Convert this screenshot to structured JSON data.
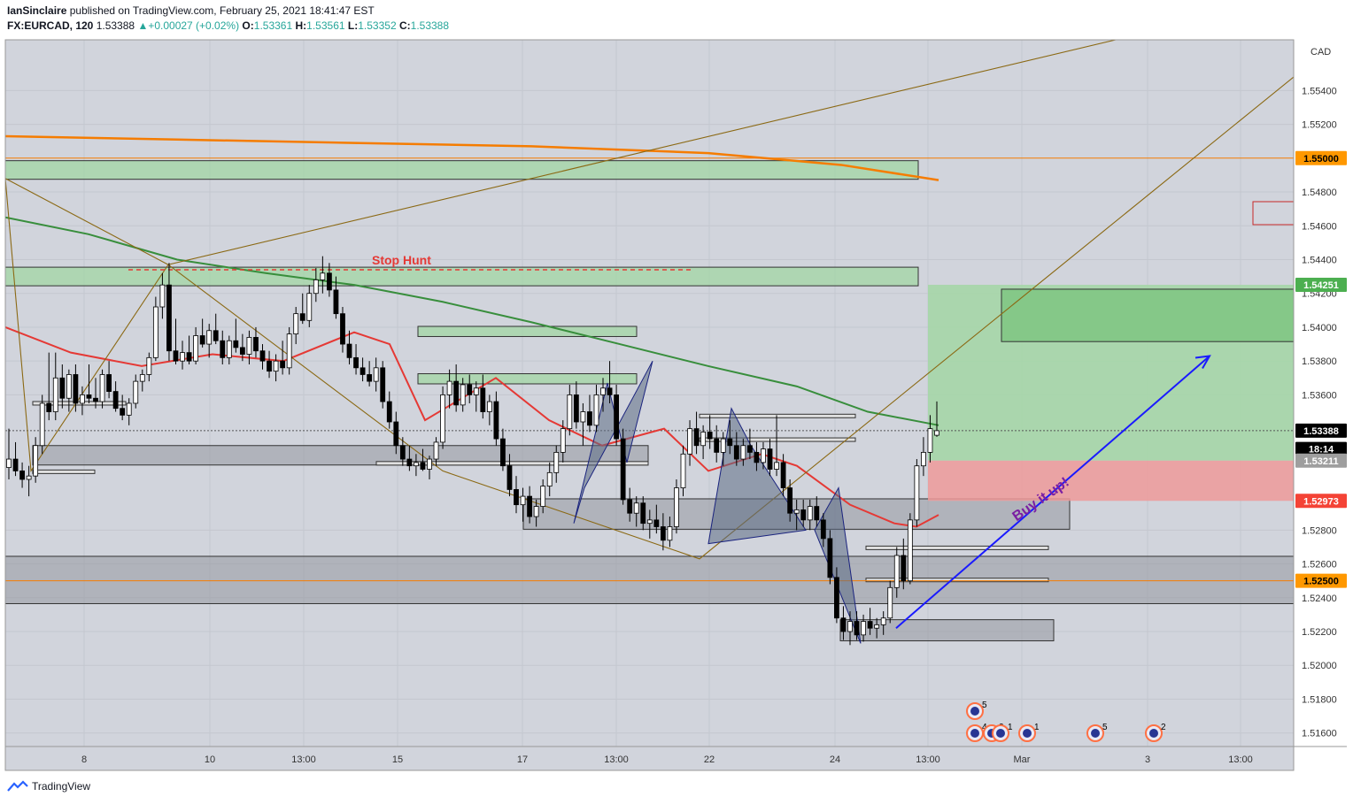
{
  "header": {
    "author": "IanSinclaire",
    "published_text": "published on TradingView.com, February 25, 2021 18:41:47 EST",
    "symbol": "FX:EURCAD, 120",
    "last": "1.53388",
    "change": "+0.00027 (+0.02%)",
    "o_label": "O:",
    "o": "1.53361",
    "h_label": "H:",
    "h": "1.53561",
    "l_label": "L:",
    "l": "1.53352",
    "c_label": "C:",
    "c": "1.53388"
  },
  "footer": {
    "brand": "TradingView"
  },
  "colors": {
    "up": "#ffffff",
    "down": "#000000",
    "bg": "#d1d4dc",
    "ema_red": "#e53935",
    "ema_green": "#388e3c",
    "ema_orange": "#f57c00",
    "zone_green": "#a5d6a7",
    "zone_gray": "#9598a1",
    "trend": "#8b6914",
    "arrow": "#1a1aff",
    "label_purple": "#7b1fa2",
    "stop_red": "#e53935"
  },
  "chart_data": {
    "type": "candlestick",
    "price_axis_unit": "CAD",
    "ylim": [
      1.5152,
      1.557
    ],
    "y_ticks": [
      "1.55400",
      "1.55200",
      "1.54800",
      "1.54600",
      "1.54400",
      "1.54200",
      "1.54000",
      "1.53800",
      "1.53600",
      "1.52800",
      "1.52600",
      "1.52400",
      "1.52200",
      "1.52000",
      "1.51800",
      "1.51600"
    ],
    "y_tick_values": [
      1.554,
      1.552,
      1.548,
      1.546,
      1.544,
      1.542,
      1.54,
      1.538,
      1.536,
      1.528,
      1.526,
      1.524,
      1.522,
      1.52,
      1.518,
      1.516
    ],
    "x_ticks": [
      "8",
      "10",
      "13:00",
      "15",
      "17",
      "13:00",
      "22",
      "24",
      "13:00",
      "Mar",
      "3",
      "13:00"
    ],
    "price_labels": [
      {
        "text": "1.55000",
        "value": 1.55,
        "color": "#ff9800",
        "text_color": "#000000"
      },
      {
        "text": "1.54251",
        "value": 1.54251,
        "color": "#4caf50",
        "text_color": "#ffffff"
      },
      {
        "text": "1.53388",
        "value": 1.53388,
        "color": "#000000",
        "text_color": "#ffffff"
      },
      {
        "text": "18:14",
        "value": 1.5328,
        "color": "#000000",
        "text_color": "#ffffff"
      },
      {
        "text": "1.53211",
        "value": 1.53211,
        "color": "#9e9e9e",
        "text_color": "#ffffff"
      },
      {
        "text": "1.52973",
        "value": 1.52973,
        "color": "#f44336",
        "text_color": "#ffffff"
      },
      {
        "text": "1.52500",
        "value": 1.525,
        "color": "#ff9800",
        "text_color": "#000000"
      }
    ],
    "annotations": [
      {
        "text": "Stop Hunt",
        "color": "#e53935"
      },
      {
        "text": "Buy it up!",
        "color": "#7b1fa2"
      }
    ],
    "event_badges": [
      "5",
      "4",
      "2",
      "1",
      "1",
      "5",
      "2"
    ],
    "candles_ohlc": [
      [
        1.5317,
        1.534,
        1.531,
        1.5322
      ],
      [
        1.5322,
        1.5332,
        1.5312,
        1.5315
      ],
      [
        1.5315,
        1.532,
        1.5305,
        1.531
      ],
      [
        1.531,
        1.5318,
        1.53,
        1.5312
      ],
      [
        1.5312,
        1.5335,
        1.5308,
        1.533
      ],
      [
        1.533,
        1.536,
        1.5325,
        1.5355
      ],
      [
        1.5355,
        1.5385,
        1.5345,
        1.535
      ],
      [
        1.535,
        1.5385,
        1.5345,
        1.537
      ],
      [
        1.537,
        1.5378,
        1.5352,
        1.5358
      ],
      [
        1.5358,
        1.5375,
        1.535,
        1.5372
      ],
      [
        1.5372,
        1.5378,
        1.535,
        1.5355
      ],
      [
        1.5355,
        1.5365,
        1.5348,
        1.536
      ],
      [
        1.536,
        1.5378,
        1.5355,
        1.5358
      ],
      [
        1.5358,
        1.537,
        1.5352,
        1.5356
      ],
      [
        1.5356,
        1.5375,
        1.5352,
        1.5372
      ],
      [
        1.5372,
        1.538,
        1.5358,
        1.5362
      ],
      [
        1.5362,
        1.5368,
        1.535,
        1.5352
      ],
      [
        1.5352,
        1.536,
        1.5345,
        1.5348
      ],
      [
        1.5348,
        1.5358,
        1.5342,
        1.5355
      ],
      [
        1.5355,
        1.5372,
        1.5352,
        1.5368
      ],
      [
        1.5368,
        1.5375,
        1.5362,
        1.5372
      ],
      [
        1.5372,
        1.5385,
        1.5368,
        1.5382
      ],
      [
        1.5382,
        1.5418,
        1.538,
        1.5412
      ],
      [
        1.5412,
        1.5432,
        1.5405,
        1.5425
      ],
      [
        1.5425,
        1.5438,
        1.538,
        1.5386
      ],
      [
        1.5386,
        1.5405,
        1.5378,
        1.538
      ],
      [
        1.538,
        1.5392,
        1.5375,
        1.5385
      ],
      [
        1.5385,
        1.5395,
        1.5378,
        1.538
      ],
      [
        1.538,
        1.54,
        1.5378,
        1.5395
      ],
      [
        1.5395,
        1.5405,
        1.5388,
        1.539
      ],
      [
        1.539,
        1.5402,
        1.5382,
        1.5398
      ],
      [
        1.5398,
        1.5408,
        1.539,
        1.5392
      ],
      [
        1.5392,
        1.5398,
        1.5378,
        1.5382
      ],
      [
        1.5382,
        1.5395,
        1.5378,
        1.5392
      ],
      [
        1.5392,
        1.5405,
        1.5385,
        1.5388
      ],
      [
        1.5388,
        1.5396,
        1.538,
        1.5384
      ],
      [
        1.5384,
        1.5398,
        1.5378,
        1.5394
      ],
      [
        1.5394,
        1.54,
        1.5382,
        1.5386
      ],
      [
        1.5386,
        1.539,
        1.5375,
        1.538
      ],
      [
        1.538,
        1.5386,
        1.537,
        1.5374
      ],
      [
        1.5374,
        1.5384,
        1.5368,
        1.538
      ],
      [
        1.538,
        1.5392,
        1.5372,
        1.5376
      ],
      [
        1.5376,
        1.54,
        1.5372,
        1.5396
      ],
      [
        1.5396,
        1.5412,
        1.539,
        1.5408
      ],
      [
        1.5408,
        1.542,
        1.5402,
        1.5404
      ],
      [
        1.5404,
        1.5425,
        1.54,
        1.542
      ],
      [
        1.542,
        1.5435,
        1.5415,
        1.5428
      ],
      [
        1.5428,
        1.5442,
        1.542,
        1.5432
      ],
      [
        1.5432,
        1.5438,
        1.5418,
        1.5422
      ],
      [
        1.5422,
        1.543,
        1.5405,
        1.5408
      ],
      [
        1.5408,
        1.5412,
        1.5385,
        1.539
      ],
      [
        1.539,
        1.5398,
        1.5378,
        1.5382
      ],
      [
        1.5382,
        1.539,
        1.5372,
        1.5376
      ],
      [
        1.5376,
        1.5382,
        1.5368,
        1.5372
      ],
      [
        1.5372,
        1.538,
        1.5365,
        1.5368
      ],
      [
        1.5368,
        1.5382,
        1.5362,
        1.5376
      ],
      [
        1.5376,
        1.538,
        1.5352,
        1.5356
      ],
      [
        1.5356,
        1.5362,
        1.534,
        1.5344
      ],
      [
        1.5344,
        1.535,
        1.5325,
        1.533
      ],
      [
        1.533,
        1.5335,
        1.5318,
        1.5322
      ],
      [
        1.5322,
        1.533,
        1.5315,
        1.5318
      ],
      [
        1.5318,
        1.5325,
        1.5312,
        1.532
      ],
      [
        1.532,
        1.5328,
        1.5315,
        1.5316
      ],
      [
        1.5316,
        1.5324,
        1.531,
        1.5322
      ],
      [
        1.5322,
        1.5335,
        1.5318,
        1.5332
      ],
      [
        1.5332,
        1.5365,
        1.5328,
        1.536
      ],
      [
        1.536,
        1.5375,
        1.5352,
        1.5368
      ],
      [
        1.5368,
        1.5378,
        1.535,
        1.5354
      ],
      [
        1.5354,
        1.537,
        1.535,
        1.5366
      ],
      [
        1.5366,
        1.5372,
        1.5355,
        1.536
      ],
      [
        1.536,
        1.5368,
        1.535,
        1.5364
      ],
      [
        1.5364,
        1.5372,
        1.5346,
        1.535
      ],
      [
        1.535,
        1.536,
        1.5342,
        1.5356
      ],
      [
        1.5356,
        1.5362,
        1.533,
        1.5334
      ],
      [
        1.5334,
        1.534,
        1.5315,
        1.5318
      ],
      [
        1.5318,
        1.5325,
        1.53,
        1.5304
      ],
      [
        1.5304,
        1.5312,
        1.529,
        1.5295
      ],
      [
        1.5295,
        1.5305,
        1.5285,
        1.53
      ],
      [
        1.53,
        1.5306,
        1.5284,
        1.5288
      ],
      [
        1.5288,
        1.5298,
        1.5282,
        1.5294
      ],
      [
        1.5294,
        1.531,
        1.529,
        1.5306
      ],
      [
        1.5306,
        1.532,
        1.53,
        1.5314
      ],
      [
        1.5314,
        1.533,
        1.5308,
        1.5326
      ],
      [
        1.5326,
        1.5345,
        1.532,
        1.534
      ],
      [
        1.534,
        1.5366,
        1.5336,
        1.536
      ],
      [
        1.536,
        1.5368,
        1.534,
        1.5344
      ],
      [
        1.5344,
        1.5355,
        1.533,
        1.535
      ],
      [
        1.535,
        1.536,
        1.5338,
        1.5342
      ],
      [
        1.5342,
        1.5366,
        1.5338,
        1.536
      ],
      [
        1.536,
        1.537,
        1.535,
        1.5364
      ],
      [
        1.5364,
        1.538,
        1.5355,
        1.536
      ],
      [
        1.536,
        1.5366,
        1.533,
        1.5334
      ],
      [
        1.5334,
        1.534,
        1.5295,
        1.5298
      ],
      [
        1.5298,
        1.5305,
        1.5285,
        1.529
      ],
      [
        1.529,
        1.53,
        1.5282,
        1.5296
      ],
      [
        1.5296,
        1.53,
        1.528,
        1.5284
      ],
      [
        1.5284,
        1.5292,
        1.5275,
        1.5286
      ],
      [
        1.5286,
        1.5295,
        1.5278,
        1.5282
      ],
      [
        1.5282,
        1.529,
        1.5268,
        1.5274
      ],
      [
        1.5274,
        1.5288,
        1.527,
        1.5282
      ],
      [
        1.5282,
        1.531,
        1.5278,
        1.5305
      ],
      [
        1.5305,
        1.533,
        1.53,
        1.5325
      ],
      [
        1.5325,
        1.5345,
        1.5318,
        1.534
      ],
      [
        1.534,
        1.535,
        1.5325,
        1.533
      ],
      [
        1.533,
        1.5342,
        1.5322,
        1.5338
      ],
      [
        1.5338,
        1.5348,
        1.5328,
        1.5334
      ],
      [
        1.5334,
        1.5342,
        1.532,
        1.5326
      ],
      [
        1.5326,
        1.5338,
        1.5318,
        1.5334
      ],
      [
        1.5334,
        1.5345,
        1.5325,
        1.533
      ],
      [
        1.533,
        1.5338,
        1.5318,
        1.5322
      ],
      [
        1.5322,
        1.5334,
        1.5318,
        1.533
      ],
      [
        1.533,
        1.534,
        1.5322,
        1.5326
      ],
      [
        1.5326,
        1.5332,
        1.5315,
        1.532
      ],
      [
        1.532,
        1.5332,
        1.5316,
        1.5328
      ],
      [
        1.5328,
        1.5334,
        1.5312,
        1.5316
      ],
      [
        1.5316,
        1.5348,
        1.5312,
        1.532
      ],
      [
        1.532,
        1.5325,
        1.53,
        1.5305
      ],
      [
        1.5305,
        1.531,
        1.5285,
        1.529
      ],
      [
        1.529,
        1.5298,
        1.528,
        1.5292
      ],
      [
        1.5292,
        1.5298,
        1.5282,
        1.5286
      ],
      [
        1.5286,
        1.5298,
        1.528,
        1.5294
      ],
      [
        1.5294,
        1.53,
        1.5282,
        1.5286
      ],
      [
        1.5286,
        1.529,
        1.527,
        1.5275
      ],
      [
        1.5275,
        1.528,
        1.5248,
        1.5252
      ],
      [
        1.5252,
        1.5258,
        1.5225,
        1.5228
      ],
      [
        1.5228,
        1.5235,
        1.5215,
        1.522
      ],
      [
        1.522,
        1.5232,
        1.5212,
        1.5226
      ],
      [
        1.5226,
        1.5232,
        1.5215,
        1.5218
      ],
      [
        1.5218,
        1.523,
        1.5214,
        1.5226
      ],
      [
        1.5226,
        1.5234,
        1.5218,
        1.5222
      ],
      [
        1.5222,
        1.5228,
        1.5216,
        1.5224
      ],
      [
        1.5224,
        1.5232,
        1.5218,
        1.5228
      ],
      [
        1.5228,
        1.525,
        1.5225,
        1.5246
      ],
      [
        1.5246,
        1.527,
        1.524,
        1.5265
      ],
      [
        1.5265,
        1.5275,
        1.5245,
        1.525
      ],
      [
        1.525,
        1.529,
        1.5248,
        1.5286
      ],
      [
        1.5286,
        1.5322,
        1.5282,
        1.5318
      ],
      [
        1.5318,
        1.5335,
        1.5312,
        1.5326
      ],
      [
        1.5326,
        1.5348,
        1.532,
        1.534
      ],
      [
        1.53361,
        1.53561,
        1.53352,
        1.53388
      ]
    ]
  }
}
